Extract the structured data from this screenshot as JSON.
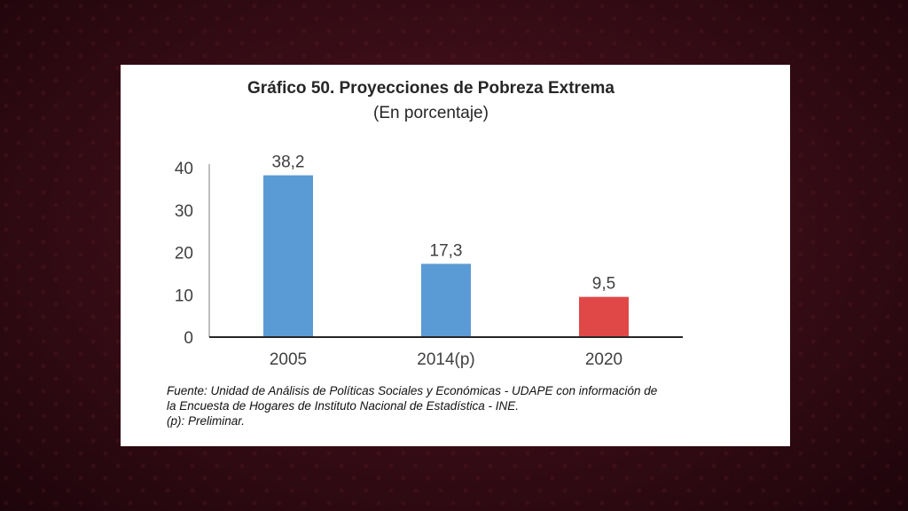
{
  "chart_data": {
    "type": "bar",
    "title": "Gráfico 50. Proyecciones de Pobreza Extrema",
    "subtitle": "(En porcentaje)",
    "categories": [
      "2005",
      "2014(p)",
      "2020"
    ],
    "values": [
      38.2,
      17.3,
      9.5
    ],
    "value_labels": [
      "38,2",
      "17,3",
      "9,5"
    ],
    "bar_colors": [
      "#5b9bd5",
      "#5b9bd5",
      "#e04848"
    ],
    "ylim": [
      0,
      40
    ],
    "yticks": [
      0,
      10,
      20,
      30,
      40
    ],
    "xlabel": "",
    "ylabel": "",
    "grid": false,
    "legend": "none"
  },
  "footnote": {
    "lines": [
      "Fuente: Unidad de Análisis de Políticas Sociales y Económicas - UDAPE  con información de",
      "la Encuesta de Hogares de Instituto Nacional de Estadística - INE.",
      "(p): Preliminar."
    ]
  }
}
